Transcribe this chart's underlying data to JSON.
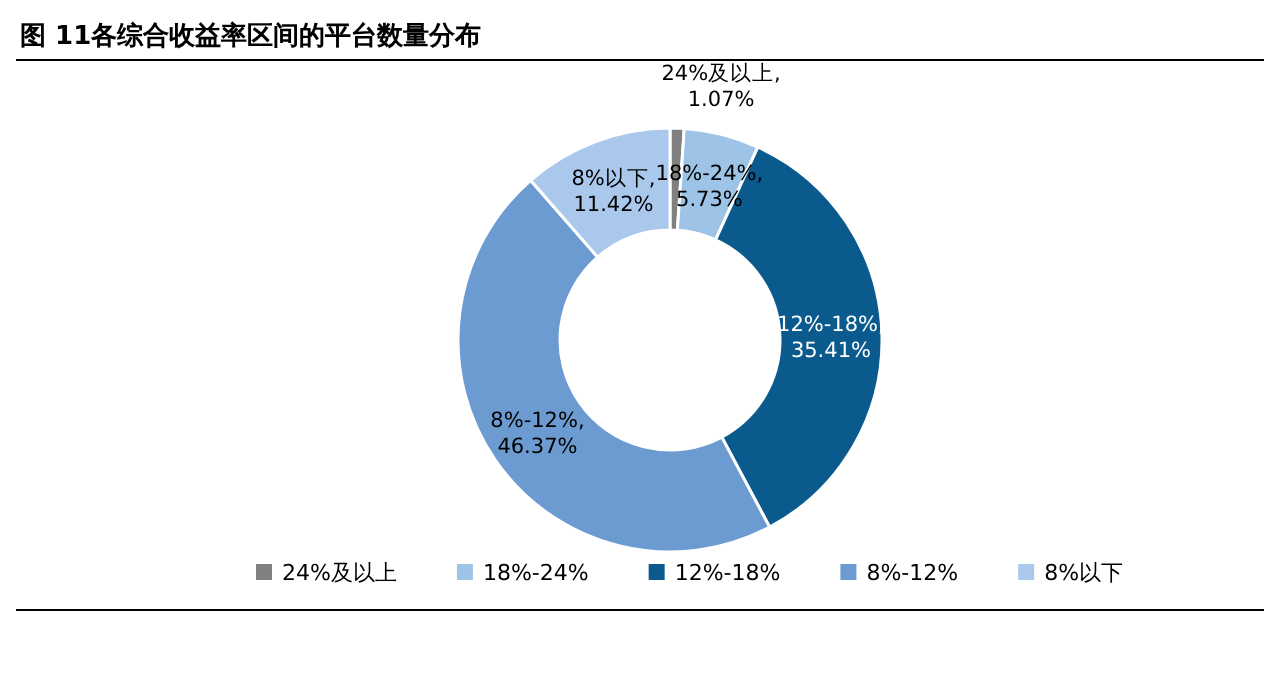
{
  "chart_data": {
    "type": "donut",
    "title": "图 11各综合收益率区间的平台数量分布",
    "categories": [
      "24%及以上",
      "18%-24%",
      "12%-18%",
      "8%-12%",
      "8%以下"
    ],
    "values": [
      1.07,
      5.73,
      35.41,
      46.37,
      11.42
    ],
    "colors": [
      "#808080",
      "#9dc3e6",
      "#0b5a8e",
      "#6b9bd1",
      "#a9c8ec"
    ],
    "value_labels": [
      "24%及以上,\n1.07%",
      "18%-24%,\n5.73%",
      "12%-18%,\n35.41%",
      "8%-12%,\n46.37%",
      "8%以下,\n11.42%"
    ],
    "legend": "bottom"
  }
}
